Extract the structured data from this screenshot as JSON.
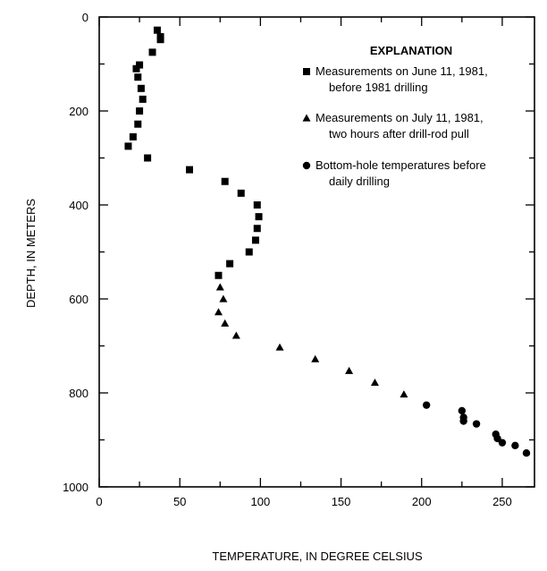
{
  "chart_data": {
    "type": "scatter",
    "xlabel": "TEMPERATURE, IN DEGREE CELSIUS",
    "ylabel": "DEPTH, IN METERS",
    "xlim": [
      0,
      270
    ],
    "ylim": [
      1000,
      0
    ],
    "x_ticks": [
      0,
      50,
      100,
      150,
      200,
      250
    ],
    "x_tick_labels": [
      "0",
      "50",
      "100",
      "150",
      "200",
      "250"
    ],
    "y_ticks": [
      0,
      200,
      400,
      600,
      800,
      1000
    ],
    "y_tick_labels": [
      "0",
      "200",
      "400",
      "600",
      "800",
      "1000"
    ],
    "grid": false,
    "legend": {
      "title": "EXPLANATION",
      "placement": "top-right",
      "entries": [
        {
          "marker": "square",
          "lines": [
            "Measurements on June 11, 1981,",
            "before  1981 drilling"
          ]
        },
        {
          "marker": "triangle",
          "lines": [
            "Measurements on July 11, 1981,",
            "two hours after drill-rod pull"
          ]
        },
        {
          "marker": "circle",
          "lines": [
            "Bottom-hole temperatures before",
            "daily drilling"
          ]
        }
      ]
    },
    "series": [
      {
        "marker": "square",
        "points": [
          [
            36,
            28
          ],
          [
            38,
            42
          ],
          [
            38,
            48
          ],
          [
            33,
            75
          ],
          [
            25,
            102
          ],
          [
            23,
            110
          ],
          [
            24,
            128
          ],
          [
            26,
            152
          ],
          [
            27,
            175
          ],
          [
            25,
            200
          ],
          [
            24,
            228
          ],
          [
            21,
            255
          ],
          [
            18,
            275
          ],
          [
            30,
            300
          ],
          [
            56,
            325
          ],
          [
            78,
            350
          ],
          [
            88,
            375
          ],
          [
            98,
            400
          ],
          [
            99,
            425
          ],
          [
            98,
            450
          ],
          [
            97,
            475
          ],
          [
            93,
            500
          ],
          [
            81,
            525
          ],
          [
            74,
            550
          ]
        ]
      },
      {
        "marker": "triangle",
        "points": [
          [
            75,
            575
          ],
          [
            77,
            600
          ],
          [
            74,
            628
          ],
          [
            78,
            652
          ],
          [
            85,
            678
          ],
          [
            112,
            703
          ],
          [
            134,
            728
          ],
          [
            155,
            753
          ],
          [
            171,
            778
          ],
          [
            189,
            803
          ]
        ]
      },
      {
        "marker": "circle",
        "points": [
          [
            203,
            826
          ],
          [
            225,
            838
          ],
          [
            226,
            852
          ],
          [
            226,
            860
          ],
          [
            234,
            866
          ],
          [
            246,
            888
          ],
          [
            247,
            897
          ],
          [
            250,
            906
          ],
          [
            258,
            912
          ],
          [
            265,
            928
          ]
        ]
      }
    ]
  }
}
